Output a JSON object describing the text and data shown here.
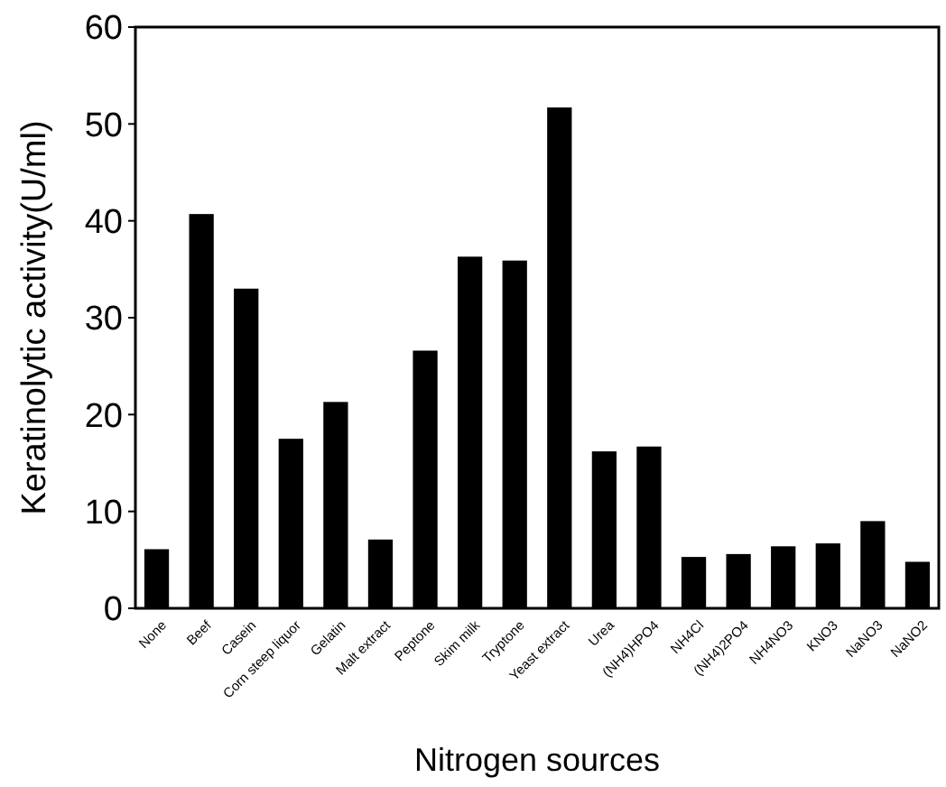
{
  "chart_data": {
    "type": "bar",
    "xlabel": "Nitrogen sources",
    "ylabel": "Keratinolytic activity(U/ml)",
    "categories": [
      "None",
      "Beef",
      "Casein",
      "Corn steep liquor",
      "Gelatin",
      "Malt extract",
      "Peptone",
      "Skim milk",
      "Tryptone",
      "Yeast extract",
      "Urea",
      "(NH4)HPO4",
      "NH4Cl",
      "(NH4)2PO4",
      "NH4NO3",
      "KNO3",
      "NaNO3",
      "NaNO2"
    ],
    "values": [
      6.1,
      40.7,
      33.0,
      17.5,
      21.3,
      7.1,
      26.6,
      36.3,
      35.9,
      51.7,
      16.2,
      16.7,
      5.3,
      5.6,
      6.4,
      6.7,
      9.0,
      4.8
    ],
    "color": "#000000",
    "ylim": [
      0,
      60
    ],
    "yticks": [
      0,
      10,
      20,
      30,
      40,
      50,
      60
    ],
    "grid": false
  }
}
